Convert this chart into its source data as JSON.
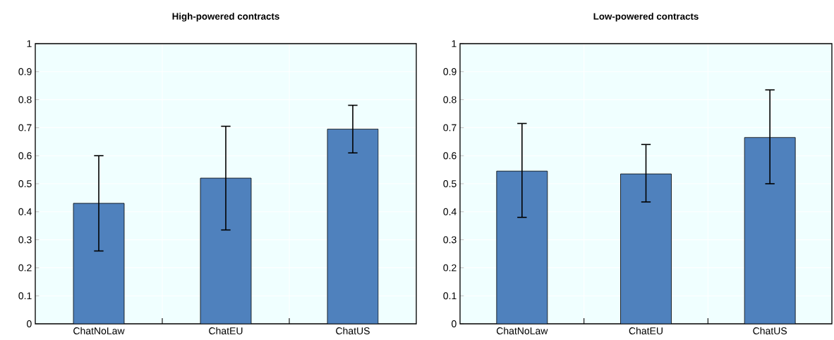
{
  "chart_data": [
    {
      "type": "bar",
      "title": "High-powered contracts",
      "categories": [
        "ChatNoLaw",
        "ChatEU",
        "ChatUS"
      ],
      "values": [
        0.43,
        0.52,
        0.695
      ],
      "errors": [
        [
          0.26,
          0.6
        ],
        [
          0.335,
          0.705
        ],
        [
          0.61,
          0.78
        ]
      ],
      "color": "#4f81bd",
      "ylim": [
        0,
        1
      ],
      "yticks": [
        0,
        0.1,
        0.2,
        0.3,
        0.4,
        0.5,
        0.6,
        0.7,
        0.8,
        0.9,
        1
      ],
      "grid": true
    },
    {
      "type": "bar",
      "title": "Low-powered contracts",
      "categories": [
        "ChatNoLaw",
        "ChatEU",
        "ChatUS"
      ],
      "values": [
        0.545,
        0.535,
        0.665
      ],
      "errors": [
        [
          0.38,
          0.715
        ],
        [
          0.435,
          0.64
        ],
        [
          0.5,
          0.835
        ]
      ],
      "color": "#4f81bd",
      "ylim": [
        0,
        1
      ],
      "yticks": [
        0,
        0.1,
        0.2,
        0.3,
        0.4,
        0.5,
        0.6,
        0.7,
        0.8,
        0.9,
        1
      ],
      "grid": true
    }
  ]
}
